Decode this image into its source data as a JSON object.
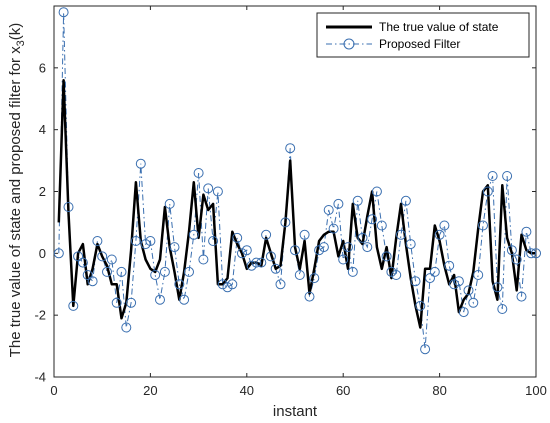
{
  "chart_data": {
    "type": "line",
    "xlabel": "instant",
    "ylabel": "The true value of state and proposed filter for x",
    "ylabel_sub": "3",
    "ylabel_suffix": "(k)",
    "xlim": [
      0,
      100
    ],
    "ylim": [
      -4,
      8
    ],
    "xticks": [
      0,
      20,
      40,
      60,
      80,
      100
    ],
    "yticks": [
      -4,
      -2,
      0,
      2,
      4,
      6
    ],
    "grid": false,
    "legend_position": "top-right",
    "x": [
      1,
      2,
      3,
      4,
      5,
      6,
      7,
      8,
      9,
      10,
      11,
      12,
      13,
      14,
      15,
      16,
      17,
      18,
      19,
      20,
      21,
      22,
      23,
      24,
      25,
      26,
      27,
      28,
      29,
      30,
      31,
      32,
      33,
      34,
      35,
      36,
      37,
      38,
      39,
      40,
      41,
      42,
      43,
      44,
      45,
      46,
      47,
      48,
      49,
      50,
      51,
      52,
      53,
      54,
      55,
      56,
      57,
      58,
      59,
      60,
      61,
      62,
      63,
      64,
      65,
      66,
      67,
      68,
      69,
      70,
      71,
      72,
      73,
      74,
      75,
      76,
      77,
      78,
      79,
      80,
      81,
      82,
      83,
      84,
      85,
      86,
      87,
      88,
      89,
      90,
      91,
      92,
      93,
      94,
      95,
      96,
      97,
      98,
      99,
      100
    ],
    "series": [
      {
        "name": "The true value of state",
        "color": "#000000",
        "style": "solid",
        "values": [
          1.0,
          5.6,
          1.3,
          -1.7,
          0.0,
          0.3,
          -1.0,
          -0.5,
          0.3,
          -0.1,
          -0.4,
          -1.0,
          -1.0,
          -2.1,
          -1.6,
          0.1,
          2.3,
          0.4,
          -0.2,
          -0.5,
          -0.6,
          -0.2,
          1.5,
          0.2,
          -0.6,
          -1.5,
          -0.6,
          0.7,
          2.3,
          0.5,
          1.9,
          1.4,
          1.6,
          -1.0,
          -1.0,
          -0.8,
          0.7,
          0.3,
          0.0,
          -0.5,
          -0.3,
          -0.3,
          -0.4,
          0.5,
          0.0,
          -0.5,
          -0.4,
          1.0,
          3.0,
          0.2,
          -0.5,
          0.4,
          -1.3,
          -0.5,
          0.4,
          0.6,
          0.7,
          0.7,
          -0.1,
          0.4,
          -0.5,
          1.6,
          0.5,
          0.3,
          1.2,
          2.0,
          0.2,
          -0.5,
          0.2,
          -0.8,
          0.5,
          1.6,
          0.3,
          -0.8,
          -1.7,
          -2.4,
          -0.5,
          -0.5,
          0.9,
          0.4,
          -0.4,
          -1.0,
          -0.7,
          -1.9,
          -1.5,
          -1.3,
          -0.6,
          0.8,
          2.0,
          2.2,
          -0.9,
          -1.5,
          2.2,
          0.5,
          0.0,
          -1.2,
          0.6,
          0.1,
          0.0,
          0.0
        ]
      },
      {
        "name": "Proposed Filter",
        "color": "#3a6fb0",
        "style": "dash-dot",
        "marker": "circle",
        "values": [
          0.0,
          7.8,
          1.5,
          -1.7,
          -0.1,
          -0.3,
          -0.7,
          -0.9,
          0.4,
          -0.1,
          -0.6,
          -0.2,
          -1.6,
          -0.6,
          -2.4,
          -1.6,
          0.4,
          2.9,
          0.3,
          0.4,
          -0.7,
          -1.5,
          -0.6,
          1.6,
          0.2,
          -1.0,
          -1.5,
          -0.6,
          0.6,
          2.6,
          -0.2,
          2.1,
          0.4,
          2.0,
          -1.0,
          -1.1,
          -1.0,
          0.5,
          0.0,
          0.1,
          -0.4,
          -0.3,
          -0.3,
          0.6,
          -0.1,
          -0.5,
          -1.0,
          1.0,
          3.4,
          0.1,
          -0.7,
          0.6,
          -1.4,
          -0.8,
          0.1,
          0.2,
          1.4,
          0.8,
          1.6,
          -0.2,
          0.2,
          -0.6,
          1.7,
          0.5,
          0.2,
          1.1,
          2.0,
          0.9,
          -0.1,
          -0.6,
          -0.7,
          0.6,
          1.7,
          0.3,
          -0.9,
          -1.7,
          -3.1,
          -0.8,
          -0.6,
          0.6,
          0.9,
          -0.4,
          -1.0,
          -0.9,
          -1.9,
          -1.2,
          -1.6,
          -0.7,
          0.9,
          2.0,
          2.5,
          -1.1,
          -1.8,
          2.5,
          0.1,
          -0.2,
          -1.4,
          0.7,
          0.0,
          0.0
        ]
      }
    ]
  }
}
